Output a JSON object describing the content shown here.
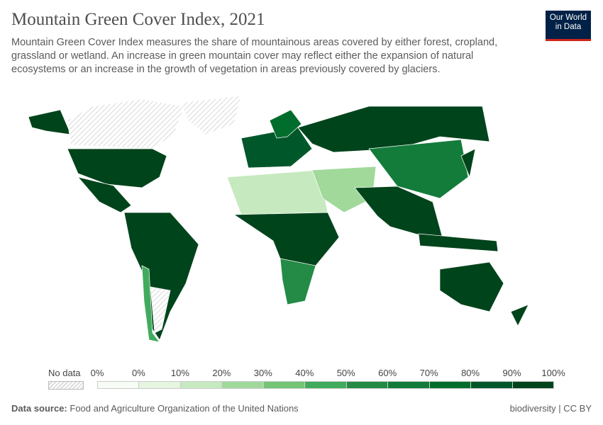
{
  "header": {
    "title": "Mountain Green Cover Index, 2021",
    "subtitle": "Mountain Green Cover Index measures the share of mountainous areas covered by either forest, cropland, grassland or wetland. An increase in green mountain cover may reflect either the expansion of natural ecosystems or an increase in the growth of vegetation in areas previously covered by glaciers.",
    "logo": "Our World in Data"
  },
  "legend": {
    "no_data_label": "No data",
    "tick_labels": [
      "0%",
      "0%",
      "10%",
      "20%",
      "30%",
      "40%",
      "50%",
      "60%",
      "70%",
      "80%",
      "90%",
      "100%"
    ],
    "bin_colors": [
      "#f7fcf5",
      "#e5f5e0",
      "#c7e9c0",
      "#a1d99b",
      "#74c476",
      "#41ab5d",
      "#238b45",
      "#137c3b",
      "#006d2c",
      "#00582a",
      "#00441b"
    ]
  },
  "map_regions": [
    {
      "region": "Alaska",
      "value": 95
    },
    {
      "region": "Canada",
      "value": null
    },
    {
      "region": "Greenland",
      "value": null
    },
    {
      "region": "United States",
      "value": 92
    },
    {
      "region": "Mexico & Central America",
      "value": 93
    },
    {
      "region": "South America",
      "value": 92
    },
    {
      "region": "Chile",
      "value": 45
    },
    {
      "region": "Argentina",
      "value": null
    },
    {
      "region": "Europe",
      "value": 88
    },
    {
      "region": "Scandinavia",
      "value": 75
    },
    {
      "region": "Russia",
      "value": 96
    },
    {
      "region": "North Africa",
      "value": 15
    },
    {
      "region": "Sub-Saharan Africa",
      "value": 93
    },
    {
      "region": "Southern Africa",
      "value": 55
    },
    {
      "region": "Middle East",
      "value": 22
    },
    {
      "region": "China",
      "value": 62
    },
    {
      "region": "South Asia & Southeast Asia",
      "value": 94
    },
    {
      "region": "Indonesia",
      "value": 95
    },
    {
      "region": "Japan",
      "value": 95
    },
    {
      "region": "Australia",
      "value": 93
    },
    {
      "region": "New Zealand",
      "value": 92
    }
  ],
  "footer": {
    "source_label": "Data source:",
    "source": "Food and Agriculture Organization of the United Nations",
    "license": "biodiversity | CC BY"
  }
}
